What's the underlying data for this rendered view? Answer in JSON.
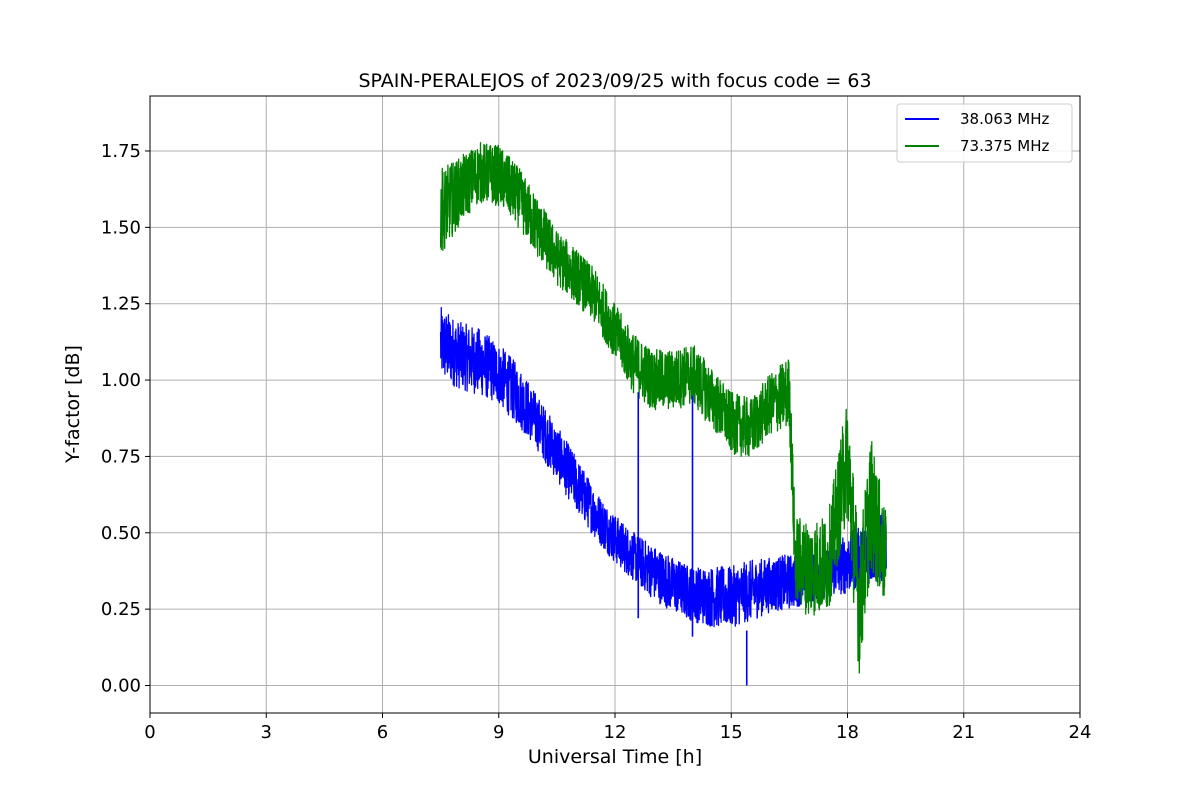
{
  "chart_data": {
    "type": "line",
    "title": "SPAIN-PERALEJOS of 2023/09/25 with focus code = 63",
    "xlabel": "Universal Time [h]",
    "ylabel": "Y-factor [dB]",
    "xlim": [
      0,
      24
    ],
    "ylim": [
      -0.09,
      1.93
    ],
    "xticks": [
      0,
      3,
      6,
      9,
      12,
      15,
      18,
      21,
      24
    ],
    "yticks": [
      0.0,
      0.25,
      0.5,
      0.75,
      1.0,
      1.25,
      1.5,
      1.75
    ],
    "ytick_labels": [
      "0.00",
      "0.25",
      "0.50",
      "0.75",
      "1.00",
      "1.25",
      "1.50",
      "1.75"
    ],
    "grid": true,
    "legend_position": "top-right",
    "series": [
      {
        "name": "38.063 MHz",
        "color": "#0000ff",
        "x": [
          7.5,
          8.0,
          8.5,
          9.0,
          9.5,
          10.0,
          10.5,
          11.0,
          11.5,
          12.0,
          12.5,
          13.0,
          13.5,
          14.0,
          14.5,
          15.0,
          15.5,
          16.0,
          16.5,
          17.0,
          17.5,
          18.0,
          18.5,
          19.0
        ],
        "y": [
          1.12,
          1.08,
          1.06,
          1.02,
          0.95,
          0.86,
          0.76,
          0.66,
          0.56,
          0.48,
          0.42,
          0.37,
          0.33,
          0.3,
          0.29,
          0.29,
          0.31,
          0.33,
          0.34,
          0.35,
          0.37,
          0.4,
          0.43,
          0.46
        ],
        "noise": [
          0.12,
          0.11,
          0.11,
          0.1,
          0.1,
          0.09,
          0.09,
          0.09,
          0.08,
          0.08,
          0.08,
          0.09,
          0.09,
          0.09,
          0.1,
          0.1,
          0.1,
          0.09,
          0.09,
          0.08,
          0.08,
          0.1,
          0.1,
          0.12
        ]
      },
      {
        "name": "73.375 MHz",
        "color": "#008000",
        "x": [
          7.5,
          8.0,
          8.5,
          9.0,
          9.5,
          10.0,
          10.5,
          11.0,
          11.5,
          12.0,
          12.5,
          13.0,
          13.5,
          14.0,
          14.5,
          15.0,
          15.5,
          16.0,
          16.5,
          16.65,
          17.0,
          17.5,
          18.0,
          18.3,
          18.6,
          19.0
        ],
        "y": [
          1.55,
          1.62,
          1.68,
          1.67,
          1.6,
          1.5,
          1.4,
          1.34,
          1.27,
          1.16,
          1.05,
          1.0,
          1.0,
          1.02,
          0.94,
          0.86,
          0.84,
          0.92,
          0.96,
          0.42,
          0.38,
          0.4,
          0.75,
          0.25,
          0.6,
          0.4
        ],
        "noise": [
          0.14,
          0.11,
          0.1,
          0.1,
          0.1,
          0.1,
          0.09,
          0.09,
          0.09,
          0.09,
          0.1,
          0.1,
          0.1,
          0.1,
          0.1,
          0.1,
          0.1,
          0.1,
          0.12,
          0.14,
          0.16,
          0.16,
          0.2,
          0.22,
          0.22,
          0.16
        ]
      }
    ],
    "spikes": [
      {
        "series": 0,
        "x": 12.6,
        "y_top": 0.96,
        "y_bottom": 0.22
      },
      {
        "series": 0,
        "x": 14.0,
        "y_top": 0.95,
        "y_bottom": 0.16
      },
      {
        "series": 0,
        "x": 15.4,
        "y_top": 0.18,
        "y_bottom": 0.0
      }
    ]
  }
}
